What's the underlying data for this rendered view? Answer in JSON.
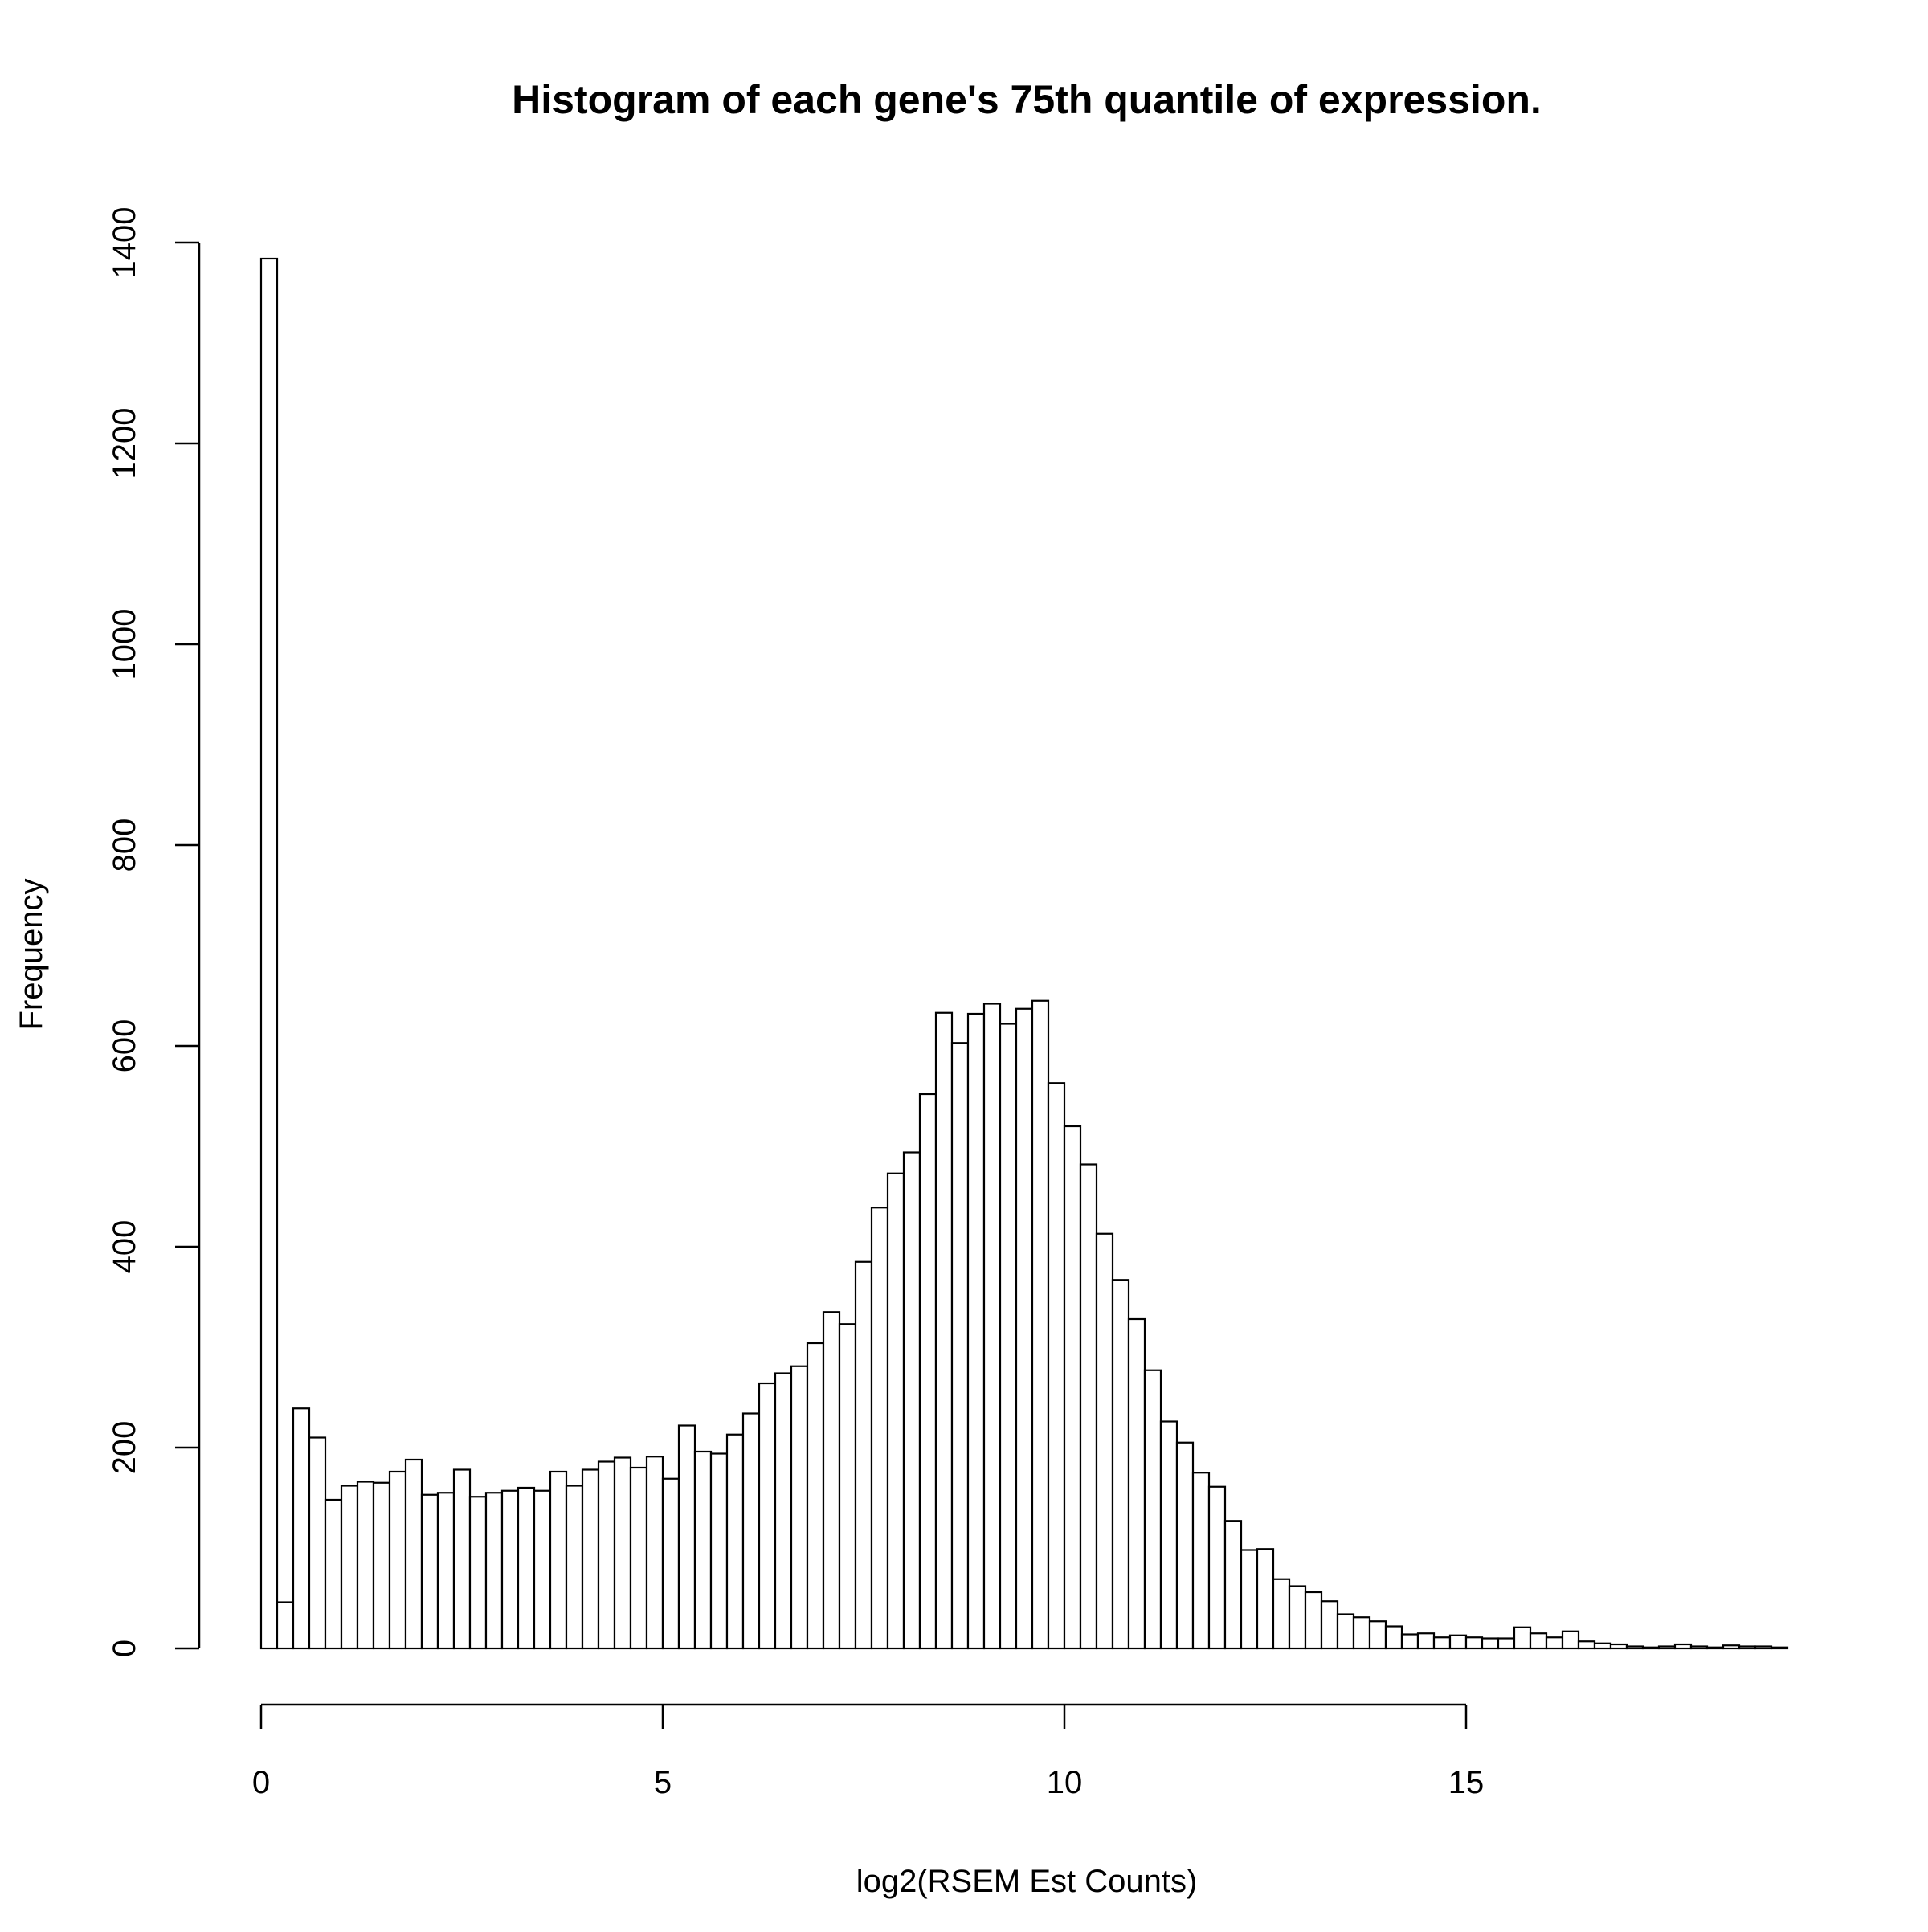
{
  "chart_data": {
    "type": "bar",
    "title": "Histogram of each gene's 75th quantile of expression.",
    "xlabel": "log2(RSEM Est Counts)",
    "ylabel": "Frequency",
    "bin_width": 0.2,
    "bin_start": 0,
    "xlim": [
      0,
      19
    ],
    "ylim": [
      0,
      1400
    ],
    "x_ticks": [
      0,
      5,
      10,
      15
    ],
    "y_ticks": [
      0,
      200,
      400,
      600,
      800,
      1000,
      1200,
      1400
    ],
    "grid": false,
    "legend": "none",
    "values": [
      1384,
      46,
      239,
      210,
      148,
      162,
      166,
      165,
      176,
      188,
      153,
      155,
      178,
      151,
      155,
      157,
      160,
      157,
      176,
      162,
      178,
      186,
      190,
      180,
      191,
      169,
      222,
      196,
      194,
      213,
      234,
      264,
      274,
      281,
      304,
      335,
      323,
      385,
      439,
      473,
      494,
      552,
      633,
      603,
      632,
      642,
      622,
      637,
      645,
      563,
      520,
      482,
      413,
      367,
      328,
      277,
      226,
      205,
      175,
      161,
      127,
      98,
      99,
      69,
      62,
      56,
      47,
      34,
      31,
      27,
      22,
      14,
      15,
      11,
      13,
      11,
      10,
      10,
      21,
      15,
      11,
      17,
      7,
      5,
      4,
      2,
      1,
      2,
      4,
      2,
      1,
      3,
      2,
      2,
      1
    ]
  }
}
